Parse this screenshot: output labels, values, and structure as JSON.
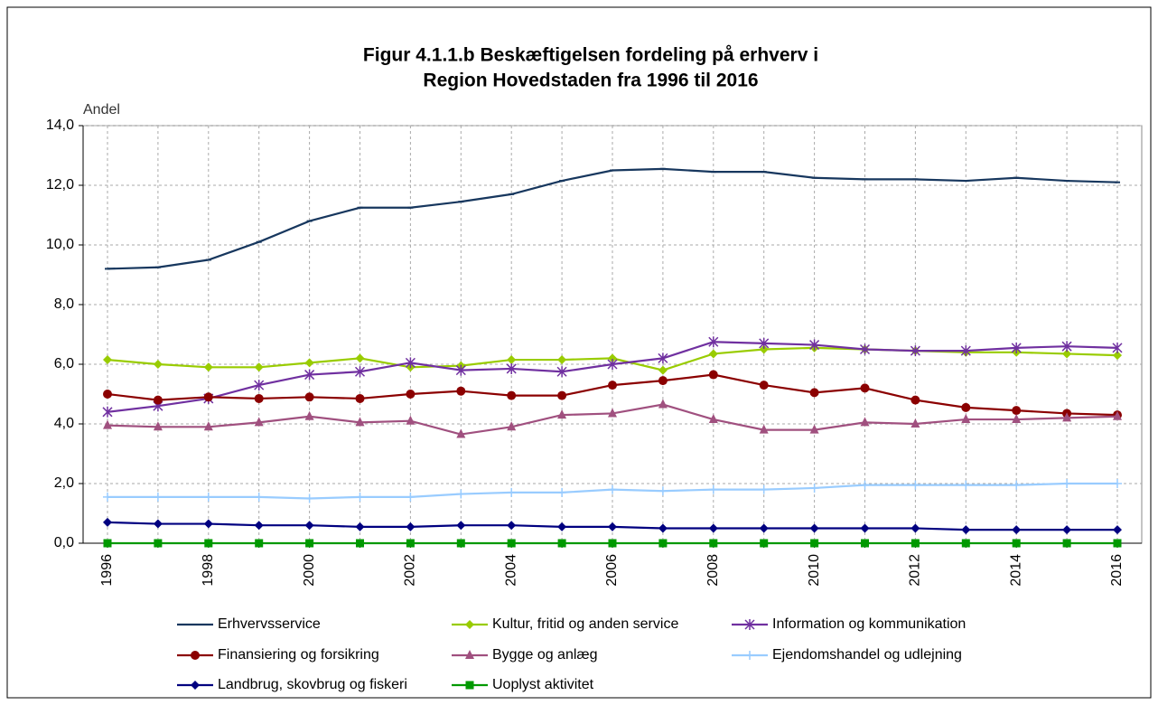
{
  "chart_data": {
    "type": "line",
    "title": [
      "Figur 4.1.1.b Beskæftigelsen fordeling på erhverv i",
      "Region Hovedstaden fra 1996 til 2016"
    ],
    "y_label": "Andel",
    "categories": [
      "1996",
      null,
      "1998",
      null,
      "2000",
      null,
      "2002",
      null,
      "2004",
      null,
      "2006",
      null,
      "2008",
      null,
      "2010",
      null,
      "2012",
      null,
      "2014",
      null,
      "2016"
    ],
    "ylim": [
      0,
      14
    ],
    "yticks": [
      {
        "value": 0,
        "label": "0,0"
      },
      {
        "value": 2,
        "label": "2,0"
      },
      {
        "value": 4,
        "label": "4,0"
      },
      {
        "value": 6,
        "label": "6,0"
      },
      {
        "value": 8,
        "label": "8,0"
      },
      {
        "value": 10,
        "label": "10,0"
      },
      {
        "value": 12,
        "label": "12,0"
      },
      {
        "value": 14,
        "label": "14,0"
      }
    ],
    "grid": true,
    "legend": "bottom",
    "series": [
      {
        "name": "Erhvervsservice",
        "color": "#17375e",
        "marker": "dash",
        "values": [
          9.2,
          9.25,
          9.5,
          10.1,
          10.8,
          11.25,
          11.25,
          11.45,
          11.7,
          12.15,
          12.5,
          12.55,
          12.45,
          12.45,
          12.25,
          12.2,
          12.2,
          12.15,
          12.25,
          12.15,
          12.1
        ]
      },
      {
        "name": "Kultur, fritid og anden service",
        "color": "#99cc00",
        "marker": "diamond",
        "values": [
          6.15,
          6.0,
          5.9,
          5.9,
          6.05,
          6.2,
          5.9,
          5.95,
          6.15,
          6.15,
          6.2,
          5.8,
          6.35,
          6.5,
          6.55,
          6.5,
          6.45,
          6.4,
          6.4,
          6.35,
          6.3
        ]
      },
      {
        "name": "Information og kommunikation",
        "color": "#7030a0",
        "marker": "star",
        "values": [
          4.4,
          4.6,
          4.85,
          5.3,
          5.65,
          5.75,
          6.05,
          5.8,
          5.85,
          5.75,
          6.0,
          6.2,
          6.75,
          6.7,
          6.65,
          6.5,
          6.45,
          6.45,
          6.55,
          6.6,
          6.55
        ]
      },
      {
        "name": "Finansiering og forsikring",
        "color": "#8b0000",
        "marker": "circle",
        "values": [
          5.0,
          4.8,
          4.9,
          4.85,
          4.9,
          4.85,
          5.0,
          5.1,
          4.95,
          4.95,
          5.3,
          5.45,
          5.65,
          5.3,
          5.05,
          5.2,
          4.8,
          4.55,
          4.45,
          4.35,
          4.3
        ]
      },
      {
        "name": "Bygge og anlæg",
        "color": "#a0507f",
        "marker": "triangle",
        "values": [
          3.95,
          3.9,
          3.9,
          4.05,
          4.25,
          4.05,
          4.1,
          3.65,
          3.9,
          4.3,
          4.35,
          4.65,
          4.15,
          3.8,
          3.8,
          4.05,
          4.0,
          4.15,
          4.15,
          4.2,
          4.25
        ]
      },
      {
        "name": "Ejendomshandel og udlejning",
        "color": "#99ccff",
        "marker": "plus",
        "values": [
          1.55,
          1.55,
          1.55,
          1.55,
          1.5,
          1.55,
          1.55,
          1.65,
          1.7,
          1.7,
          1.8,
          1.75,
          1.8,
          1.8,
          1.85,
          1.95,
          1.95,
          1.95,
          1.95,
          2.0,
          2.0
        ]
      },
      {
        "name": "Landbrug, skovbrug og fiskeri",
        "color": "#000080",
        "marker": "diamond",
        "values": [
          0.7,
          0.65,
          0.65,
          0.6,
          0.6,
          0.55,
          0.55,
          0.6,
          0.6,
          0.55,
          0.55,
          0.5,
          0.5,
          0.5,
          0.5,
          0.5,
          0.5,
          0.45,
          0.45,
          0.45,
          0.45
        ]
      },
      {
        "name": "Uoplyst aktivitet",
        "color": "#009900",
        "marker": "square",
        "values": [
          0,
          0,
          0,
          0,
          0,
          0,
          0,
          0,
          0,
          0,
          0,
          0,
          0,
          0,
          0,
          0,
          0,
          0,
          0,
          0,
          0
        ]
      }
    ]
  }
}
